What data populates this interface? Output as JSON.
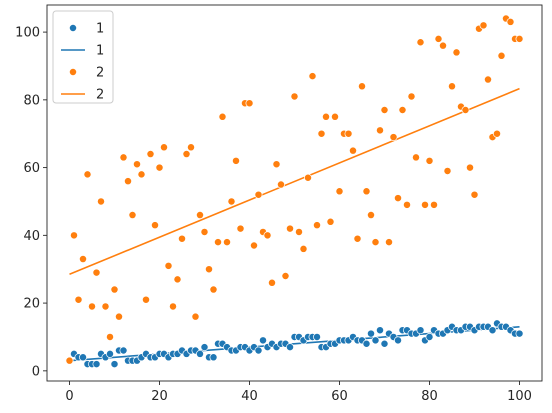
{
  "chart_data": {
    "type": "scatter",
    "title": "",
    "xlabel": "",
    "ylabel": "",
    "xlim": [
      -5,
      105
    ],
    "ylim": [
      -3,
      108
    ],
    "xticks": [
      0,
      20,
      40,
      60,
      80,
      100
    ],
    "yticks": [
      0,
      20,
      40,
      60,
      80,
      100
    ],
    "grid": false,
    "legend_position": "top-left",
    "legend": [
      {
        "label": "1",
        "kind": "marker",
        "color": "#1f77b4"
      },
      {
        "label": "1",
        "kind": "line",
        "color": "#1f77b4"
      },
      {
        "label": "2",
        "kind": "marker",
        "color": "#ff7f0e"
      },
      {
        "label": "2",
        "kind": "line",
        "color": "#ff7f0e"
      }
    ],
    "series": [
      {
        "name": "1",
        "color": "#1f77b4",
        "x": [
          0,
          1,
          2,
          3,
          4,
          5,
          6,
          7,
          8,
          9,
          10,
          11,
          12,
          13,
          14,
          15,
          16,
          17,
          18,
          19,
          20,
          21,
          22,
          23,
          24,
          25,
          26,
          27,
          28,
          29,
          30,
          31,
          32,
          33,
          34,
          35,
          36,
          37,
          38,
          39,
          40,
          41,
          42,
          43,
          44,
          45,
          46,
          47,
          48,
          49,
          50,
          51,
          52,
          53,
          54,
          55,
          56,
          57,
          58,
          59,
          60,
          61,
          62,
          63,
          64,
          65,
          66,
          67,
          68,
          69,
          70,
          71,
          72,
          73,
          74,
          75,
          76,
          77,
          78,
          79,
          80,
          81,
          82,
          83,
          84,
          85,
          86,
          87,
          88,
          89,
          90,
          91,
          92,
          93,
          94,
          95,
          96,
          97,
          98,
          99,
          100
        ],
        "y": [
          3,
          5,
          4,
          4,
          2,
          2,
          2,
          5,
          4,
          5,
          2,
          6,
          6,
          3,
          3,
          3,
          4,
          5,
          4,
          4,
          5,
          5,
          4,
          5,
          5,
          6,
          5,
          6,
          6,
          5,
          7,
          4,
          4,
          8,
          8,
          7,
          6,
          6,
          7,
          7,
          6,
          7,
          6,
          9,
          7,
          8,
          7,
          8,
          8,
          7,
          10,
          10,
          9,
          10,
          10,
          10,
          7,
          7,
          8,
          8,
          9,
          9,
          9,
          10,
          9,
          9,
          8,
          11,
          9,
          12,
          8,
          11,
          10,
          9,
          12,
          12,
          11,
          11,
          12,
          9,
          10,
          12,
          11,
          11,
          12,
          13,
          12,
          12,
          13,
          13,
          12,
          13,
          13,
          13,
          12,
          14,
          13,
          13,
          12,
          11,
          11
        ]
      },
      {
        "name": "2",
        "color": "#ff7f0e",
        "x": [
          0,
          1,
          2,
          3,
          4,
          5,
          6,
          7,
          8,
          9,
          10,
          11,
          12,
          13,
          14,
          15,
          16,
          17,
          18,
          19,
          20,
          21,
          22,
          23,
          24,
          25,
          26,
          27,
          28,
          29,
          30,
          31,
          32,
          33,
          34,
          35,
          36,
          37,
          38,
          39,
          40,
          41,
          42,
          43,
          44,
          45,
          46,
          47,
          48,
          49,
          50,
          51,
          52,
          53,
          54,
          55,
          56,
          57,
          58,
          59,
          60,
          61,
          62,
          63,
          64,
          65,
          66,
          67,
          68,
          69,
          70,
          71,
          72,
          73,
          74,
          75,
          76,
          77,
          78,
          79,
          80,
          81,
          82,
          83,
          84,
          85,
          86,
          87,
          88,
          89,
          90,
          91,
          92,
          93,
          94,
          95,
          96,
          97,
          98,
          99,
          100
        ],
        "y": [
          3,
          40,
          21,
          33,
          58,
          19,
          29,
          50,
          19,
          10,
          24,
          16,
          63,
          56,
          46,
          61,
          58,
          21,
          64,
          43,
          60,
          66,
          31,
          19,
          27,
          39,
          64,
          66,
          16,
          46,
          41,
          30,
          24,
          38,
          75,
          38,
          50,
          62,
          42,
          79,
          79,
          37,
          52,
          41,
          40,
          26,
          61,
          55,
          28,
          42,
          81,
          41,
          36,
          57,
          87,
          43,
          70,
          75,
          44,
          75,
          53,
          70,
          70,
          65,
          39,
          84,
          53,
          46,
          38,
          71,
          77,
          38,
          69,
          51,
          77,
          49,
          81,
          63,
          97,
          49,
          62,
          49,
          98,
          96,
          59,
          84,
          94,
          78,
          77,
          60,
          52,
          101,
          102,
          86,
          69,
          70,
          93,
          104,
          103,
          98,
          98
        ]
      }
    ],
    "regression_lines": [
      {
        "name": "1",
        "color": "#1f77b4",
        "x": [
          0,
          100
        ],
        "y": [
          3,
          13
        ]
      },
      {
        "name": "2",
        "color": "#ff7f0e",
        "x": [
          0,
          100
        ],
        "y": [
          28.5,
          83.3
        ]
      }
    ]
  }
}
